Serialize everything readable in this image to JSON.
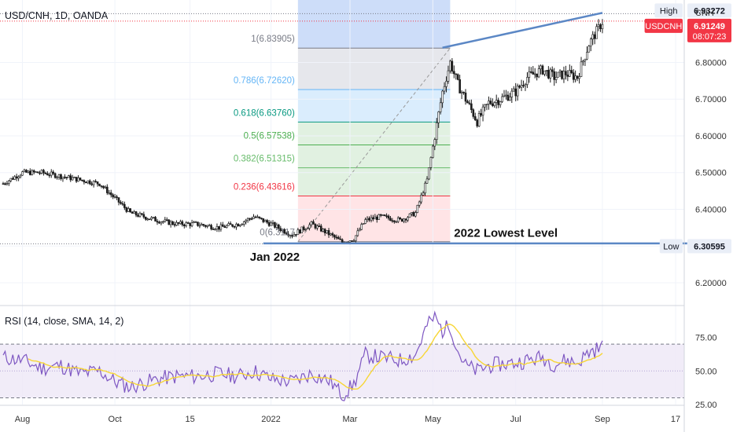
{
  "chart_data": {
    "type": "candlestick",
    "title": "USD/CNH, 1D, OANDA",
    "price_axis": {
      "label": "CNH",
      "range": [
        6.14,
        6.97
      ],
      "ticks": [
        "6.80000",
        "6.70000",
        "6.60000",
        "6.50000",
        "6.40000",
        "6.30000",
        "6.20000"
      ],
      "tick_values": [
        6.8,
        6.7,
        6.6,
        6.5,
        6.4,
        6.3,
        6.2
      ]
    },
    "time_axis": {
      "ticks": [
        "Aug",
        "Oct",
        "15",
        "2022",
        "Mar",
        "May",
        "Jul",
        "Sep",
        "17"
      ],
      "tick_index": [
        10,
        58,
        97,
        139,
        180,
        223,
        266,
        311,
        349
      ]
    },
    "price_tags": {
      "high": {
        "label": "High",
        "value_text": "6.93272",
        "value": 6.93272
      },
      "last": {
        "label": "USDCNH",
        "value_text": "6.91249",
        "value": 6.91249,
        "countdown": "08:07:23"
      },
      "low": {
        "label": "Low",
        "value_text": "6.30595",
        "value": 6.30595
      }
    },
    "fibonacci": {
      "x_range": [
        153,
        232
      ],
      "levels": [
        {
          "label": "1(6.83905)",
          "value": 6.83905,
          "color": "#787b86"
        },
        {
          "label": "0.786(6.72620)",
          "value": 6.7262,
          "color": "#64b5f6"
        },
        {
          "label": "0.618(6.63760)",
          "value": 6.6376,
          "color": "#089981"
        },
        {
          "label": "0.5(6.57538)",
          "value": 6.57538,
          "color": "#4caf50"
        },
        {
          "label": "0.382(6.51315)",
          "value": 6.51315,
          "color": "#66bb6a"
        },
        {
          "label": "0.236(6.43616)",
          "value": 6.43616,
          "color": "#f23645"
        },
        {
          "label": "0(6.3117",
          "value": 6.3117,
          "color": "#787b86"
        }
      ]
    },
    "annotations": [
      {
        "text": "Jan 2022",
        "index": 141,
        "value": 6.26
      },
      {
        "text": "2022 Lowest Level",
        "index": 234,
        "value": 6.325
      }
    ],
    "trendlines": [
      {
        "from": [
          135,
          6.307
        ],
        "to": [
          355,
          6.307
        ]
      },
      {
        "from": [
          228,
          6.84
        ],
        "to": [
          311,
          6.935
        ]
      }
    ],
    "candles_ohlc": [
      {
        "start": 6.47,
        "anchors": [
          [
            0,
            6.47
          ],
          [
            10,
            6.5
          ],
          [
            20,
            6.5
          ],
          [
            30,
            6.49
          ],
          [
            40,
            6.48
          ],
          [
            50,
            6.47
          ],
          [
            58,
            6.43
          ],
          [
            66,
            6.39
          ],
          [
            80,
            6.37
          ],
          [
            90,
            6.36
          ],
          [
            100,
            6.36
          ],
          [
            112,
            6.35
          ],
          [
            122,
            6.36
          ],
          [
            130,
            6.38
          ],
          [
            139,
            6.36
          ],
          [
            150,
            6.33
          ],
          [
            160,
            6.36
          ],
          [
            170,
            6.33
          ],
          [
            176,
            6.31
          ],
          [
            182,
            6.32
          ],
          [
            188,
            6.37
          ],
          [
            196,
            6.38
          ],
          [
            206,
            6.37
          ],
          [
            214,
            6.39
          ],
          [
            220,
            6.48
          ],
          [
            224,
            6.6
          ],
          [
            228,
            6.72
          ],
          [
            232,
            6.8
          ],
          [
            236,
            6.74
          ],
          [
            240,
            6.7
          ],
          [
            246,
            6.64
          ],
          [
            252,
            6.69
          ],
          [
            258,
            6.7
          ],
          [
            266,
            6.72
          ],
          [
            272,
            6.76
          ],
          [
            280,
            6.78
          ],
          [
            286,
            6.76
          ],
          [
            292,
            6.77
          ],
          [
            298,
            6.76
          ],
          [
            304,
            6.85
          ],
          [
            311,
            6.91
          ]
        ]
      }
    ],
    "rsi": {
      "label": "RSI (14, close, SMA, 14, 2)",
      "range": [
        25,
        97
      ],
      "ticks": [
        "75.00",
        "50.00",
        "25.00"
      ],
      "tick_values": [
        75,
        50,
        25
      ],
      "band": [
        30,
        70
      ],
      "anchors": [
        [
          0,
          60
        ],
        [
          10,
          58
        ],
        [
          20,
          52
        ],
        [
          30,
          54
        ],
        [
          40,
          48
        ],
        [
          50,
          50
        ],
        [
          58,
          42
        ],
        [
          66,
          38
        ],
        [
          80,
          44
        ],
        [
          90,
          46
        ],
        [
          100,
          46
        ],
        [
          112,
          48
        ],
        [
          122,
          46
        ],
        [
          130,
          50
        ],
        [
          139,
          44
        ],
        [
          150,
          42
        ],
        [
          160,
          48
        ],
        [
          170,
          42
        ],
        [
          176,
          32
        ],
        [
          182,
          40
        ],
        [
          188,
          62
        ],
        [
          196,
          60
        ],
        [
          206,
          58
        ],
        [
          214,
          62
        ],
        [
          220,
          84
        ],
        [
          224,
          90
        ],
        [
          228,
          80
        ],
        [
          232,
          84
        ],
        [
          236,
          65
        ],
        [
          240,
          54
        ],
        [
          246,
          50
        ],
        [
          252,
          54
        ],
        [
          258,
          55
        ],
        [
          266,
          56
        ],
        [
          272,
          58
        ],
        [
          280,
          60
        ],
        [
          286,
          55
        ],
        [
          292,
          58
        ],
        [
          298,
          56
        ],
        [
          304,
          64
        ],
        [
          311,
          68
        ]
      ]
    },
    "colors": {
      "up": "#089981",
      "down": "#f23645",
      "candle": "#1c1c1c",
      "rsi_line": "#7e57c2",
      "rsi_sma": "#f7d635",
      "trendline": "#5b87c5",
      "last_tag": "#f23645",
      "high_tag": "#e9eef7"
    },
    "grid": true
  }
}
